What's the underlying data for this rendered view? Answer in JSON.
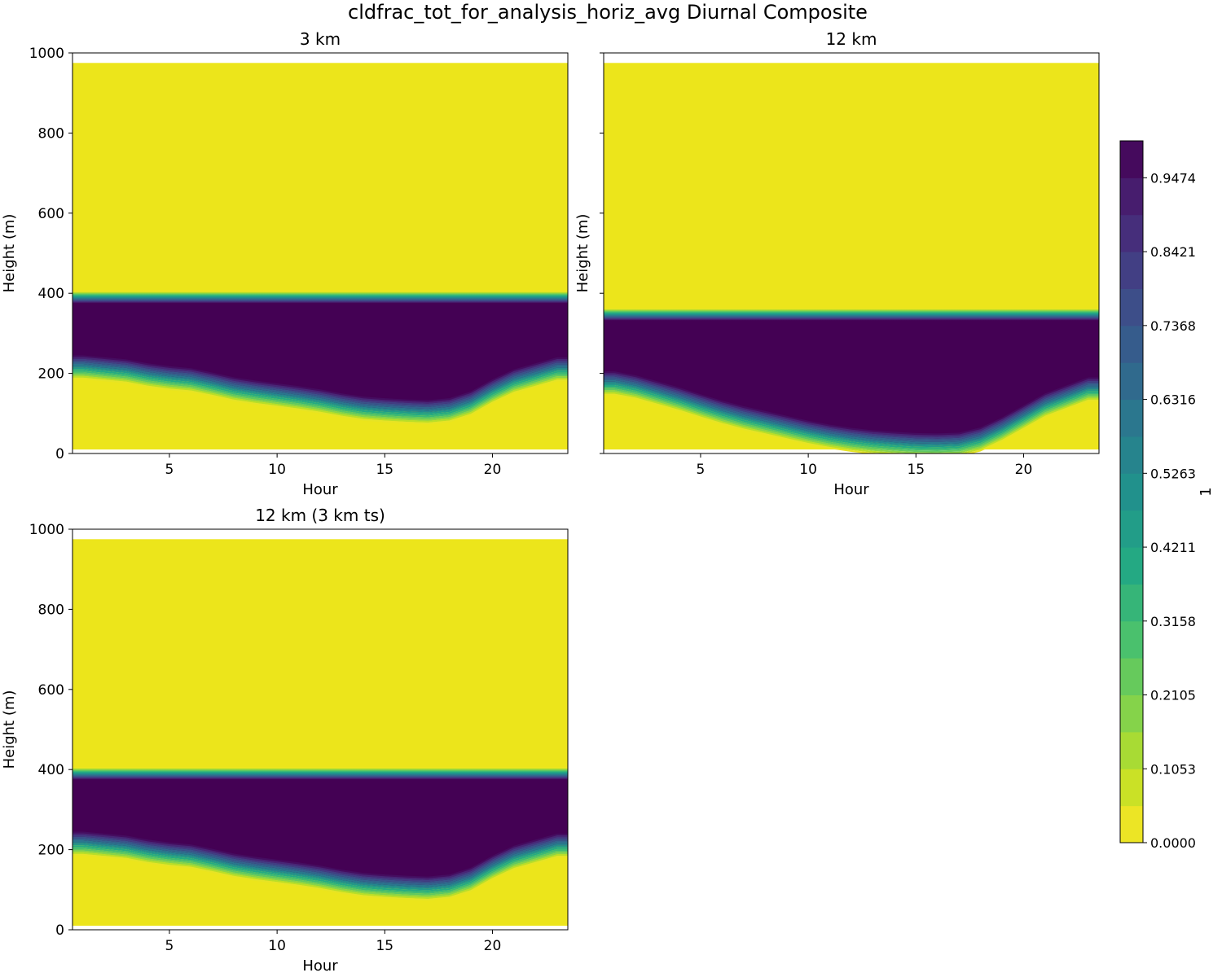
{
  "chart_data": {
    "type": "heatmap",
    "suptitle": "cldfrac_tot_for_analysis_horiz_avg Diurnal Composite",
    "variable": "cldfrac_tot_for_analysis_horiz_avg",
    "colormap": "viridis_r",
    "colors": {
      "low": "#ece51b",
      "high": "#440154",
      "axes": "#000000",
      "background": "#ffffff"
    },
    "hours": [
      1,
      2,
      3,
      4,
      5,
      6,
      7,
      8,
      9,
      10,
      11,
      12,
      13,
      14,
      15,
      16,
      17,
      18,
      19,
      20,
      21,
      22,
      23
    ],
    "xlim": [
      0.5,
      23.5
    ],
    "ylim": [
      0,
      1000
    ],
    "xlabel": "Hour",
    "ylabel": "Height (m)",
    "xticks": [
      5,
      10,
      15,
      20
    ],
    "yticks": [
      0,
      200,
      400,
      600,
      800,
      1000
    ],
    "data_top_m": 975,
    "data_bottom_m": 10,
    "cloud_top_transition_m": 30,
    "cloud_base_transition_m": 60,
    "panels": [
      {
        "title": "3 km",
        "cloud_top_m": 390,
        "cloud_base_m": [
          215,
          210,
          205,
          195,
          188,
          183,
          172,
          160,
          152,
          145,
          138,
          130,
          120,
          112,
          108,
          105,
          103,
          108,
          125,
          155,
          180,
          195,
          210
        ],
        "show_yticklabels": true
      },
      {
        "title": "12 km",
        "cloud_top_m": 347,
        "cloud_base_m": [
          175,
          165,
          150,
          135,
          118,
          102,
          88,
          76,
          64,
          52,
          42,
          34,
          28,
          24,
          21,
          20,
          22,
          35,
          60,
          90,
          120,
          140,
          160
        ],
        "show_yticklabels": false
      },
      {
        "title": "12 km (3 km ts)",
        "cloud_top_m": 390,
        "cloud_base_m": [
          215,
          210,
          205,
          195,
          188,
          183,
          172,
          160,
          152,
          145,
          138,
          130,
          120,
          112,
          108,
          105,
          103,
          108,
          125,
          155,
          180,
          195,
          210
        ],
        "show_yticklabels": true
      }
    ],
    "colorbar": {
      "label": "1",
      "min": 0.0,
      "max": 1.0,
      "levels": 21,
      "tick_labels": [
        "0.0000",
        "0.1053",
        "0.2105",
        "0.3158",
        "0.4211",
        "0.5263",
        "0.6316",
        "0.7368",
        "0.8421",
        "0.9474"
      ]
    }
  }
}
